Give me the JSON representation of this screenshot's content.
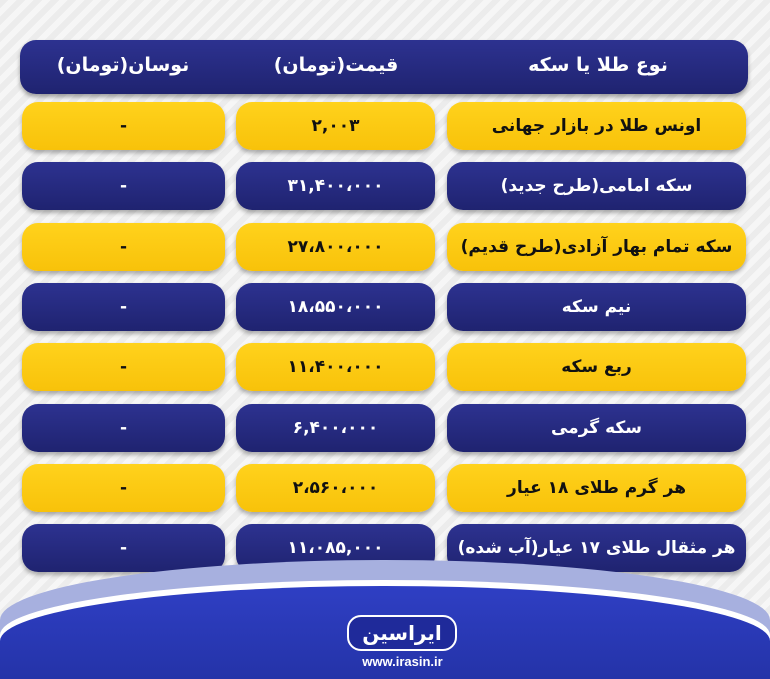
{
  "colors": {
    "navy": "#23277a",
    "yellow": "#fdc70f",
    "footer_blue": "#2a3ab8"
  },
  "header": {
    "type": "نوع طلا یا سکه",
    "price": "قیمت(تومان)",
    "change": "نوسان(تومان)"
  },
  "rows": [
    {
      "name": "اونس طلا در بازار جهانی",
      "price": "۲,۰۰۳",
      "change": "-",
      "style": "yellow"
    },
    {
      "name": "سکه امامی(طرح جدید)",
      "price": "۳۱,۴۰۰،۰۰۰",
      "change": "-",
      "style": "navy"
    },
    {
      "name": "سکه تمام بهار آزادی(طرح قدیم)",
      "price": "۲۷،۸۰۰،۰۰۰",
      "change": "-",
      "style": "yellow"
    },
    {
      "name": "نیم سکه",
      "price": "۱۸،۵۵۰،۰۰۰",
      "change": "-",
      "style": "navy"
    },
    {
      "name": "ربع سکه",
      "price": "۱۱،۴۰۰،۰۰۰",
      "change": "-",
      "style": "yellow"
    },
    {
      "name": "سکه گرمی",
      "price": "۶,۴۰۰،۰۰۰",
      "change": "-",
      "style": "navy"
    },
    {
      "name": "هر گرم طلای ۱۸ عیار",
      "price": "۲،۵۶۰،۰۰۰",
      "change": "-",
      "style": "yellow"
    },
    {
      "name": "هر مثقال طلای ۱۷ عیار(آب شده)",
      "price": "۱۱،۰۸۵,۰۰۰",
      "change": "-",
      "style": "navy"
    }
  ],
  "footer": {
    "logo": "ایراسین",
    "url": "www.irasin.ir"
  }
}
